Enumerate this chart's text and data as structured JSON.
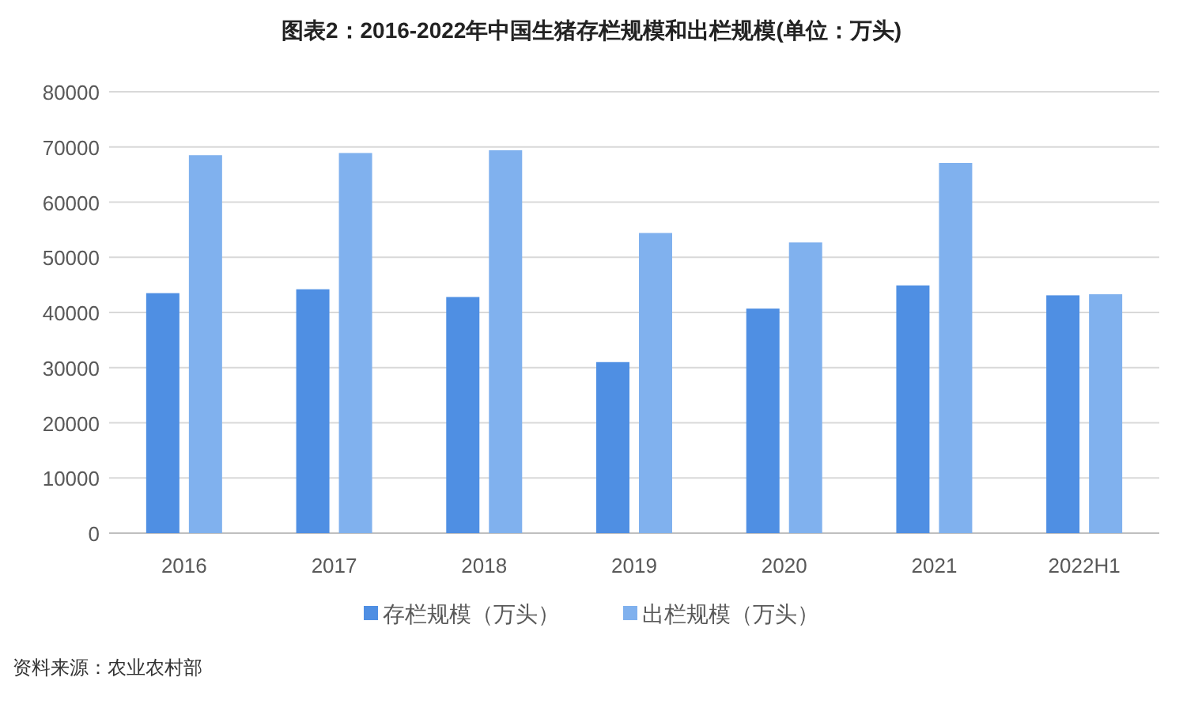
{
  "chart_data": {
    "type": "bar",
    "title": "图表2：2016-2022年中国生猪存栏规模和出栏规模(单位：万头)",
    "categories": [
      "2016",
      "2017",
      "2018",
      "2019",
      "2020",
      "2021",
      "2022H1"
    ],
    "series": [
      {
        "name": "存栏规模（万头）",
        "color": "#4f8fe3",
        "values": [
          43500,
          44200,
          42800,
          31000,
          40700,
          44900,
          43100
        ]
      },
      {
        "name": "出栏规模（万头）",
        "color": "#80b1ee",
        "values": [
          68500,
          68900,
          69400,
          54400,
          52700,
          67100,
          43300
        ]
      }
    ],
    "ylim": [
      0,
      80000
    ],
    "yticks": [
      0,
      10000,
      20000,
      30000,
      40000,
      50000,
      60000,
      70000,
      80000
    ],
    "grid": "y",
    "legend": "bottom",
    "annotations": [
      "资料来源：农业农村部"
    ]
  }
}
